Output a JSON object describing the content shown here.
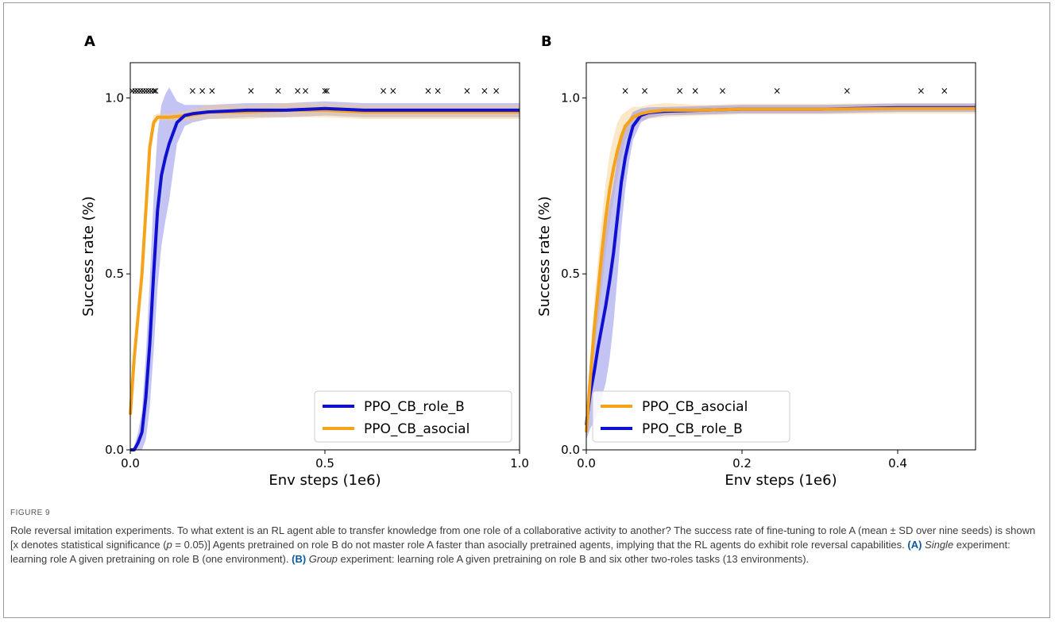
{
  "figure_label": "FIGURE 9",
  "caption_parts": [
    {
      "t": "Role reversal imitation experiments. To what extent is an RL agent able to transfer knowledge from one role of a collaborative activity to another? The success rate of fine-tuning to role A (mean ± SD over nine seeds) is shown [x denotes statistical significance ("
    },
    {
      "t": "p",
      "style": "i"
    },
    {
      "t": " = 0.05)] Agents pretrained on role B do not master role A faster than asocially pretrained agents, implying that the RL agents do exhibit role reversal capabilities. "
    },
    {
      "t": "(A)",
      "style": "b"
    },
    {
      "t": " "
    },
    {
      "t": "Single",
      "style": "i"
    },
    {
      "t": " experiment: learning role A given pretraining on role B (one environment). "
    },
    {
      "t": "(B)",
      "style": "b"
    },
    {
      "t": " "
    },
    {
      "t": "Group",
      "style": "i"
    },
    {
      "t": " experiment: learning role A given pretraining on role B and six other two-roles tasks (13 environments)."
    }
  ],
  "colors": {
    "blue": "#1010d0",
    "orange": "#f5a31a",
    "blue_band": "#7d7de6",
    "orange_band": "#f7cd85"
  },
  "chart_data": [
    {
      "panel": "A",
      "type": "line",
      "xlabel": "Env steps (1e6)",
      "ylabel": "Success rate (%)",
      "xlim": [
        0,
        1.0
      ],
      "ylim": [
        0,
        1.1
      ],
      "xticks": [
        0.0,
        0.5,
        1.0
      ],
      "xtick_labels": [
        "0.0",
        "0.5",
        "1.0"
      ],
      "yticks": [
        0.0,
        0.5,
        1.0
      ],
      "ytick_labels": [
        "0.0",
        "0.5",
        "1.0"
      ],
      "legend_position": "lower right",
      "series": [
        {
          "name": "PPO_CB_role_B",
          "color": "blue",
          "x": [
            0.0,
            0.01,
            0.02,
            0.03,
            0.04,
            0.05,
            0.06,
            0.07,
            0.08,
            0.09,
            0.1,
            0.12,
            0.14,
            0.16,
            0.2,
            0.3,
            0.4,
            0.5,
            0.6,
            0.7,
            0.8,
            0.9,
            1.0
          ],
          "y": [
            0.0,
            0.0,
            0.02,
            0.05,
            0.15,
            0.3,
            0.5,
            0.68,
            0.78,
            0.83,
            0.87,
            0.93,
            0.95,
            0.955,
            0.96,
            0.965,
            0.965,
            0.97,
            0.965,
            0.965,
            0.965,
            0.965,
            0.965
          ],
          "sd": [
            0.0,
            0.01,
            0.03,
            0.06,
            0.12,
            0.18,
            0.22,
            0.22,
            0.2,
            0.18,
            0.16,
            0.06,
            0.03,
            0.025,
            0.02,
            0.02,
            0.02,
            0.02,
            0.02,
            0.02,
            0.02,
            0.02,
            0.02
          ]
        },
        {
          "name": "PPO_CB_asocial",
          "color": "orange",
          "x": [
            0.0,
            0.01,
            0.02,
            0.03,
            0.04,
            0.05,
            0.06,
            0.07,
            0.08,
            0.1,
            0.15,
            0.2,
            0.3,
            0.4,
            0.5,
            0.6,
            0.7,
            0.8,
            0.9,
            1.0
          ],
          "y": [
            0.1,
            0.26,
            0.38,
            0.5,
            0.68,
            0.86,
            0.93,
            0.945,
            0.945,
            0.945,
            0.95,
            0.96,
            0.96,
            0.965,
            0.965,
            0.96,
            0.96,
            0.96,
            0.96,
            0.96
          ],
          "sd": [
            0.03,
            0.03,
            0.03,
            0.03,
            0.03,
            0.03,
            0.02,
            0.01,
            0.01,
            0.01,
            0.015,
            0.02,
            0.02,
            0.02,
            0.02,
            0.02,
            0.02,
            0.02,
            0.02,
            0.02
          ]
        }
      ],
      "significance_x": [
        0.005,
        0.012,
        0.019,
        0.026,
        0.033,
        0.04,
        0.047,
        0.054,
        0.061,
        0.065,
        0.16,
        0.185,
        0.21,
        0.31,
        0.38,
        0.43,
        0.45,
        0.5,
        0.505,
        0.65,
        0.675,
        0.765,
        0.79,
        0.865,
        0.91,
        0.94
      ],
      "significance_y": 1.02
    },
    {
      "panel": "B",
      "type": "line",
      "xlabel": "Env steps (1e6)",
      "ylabel": "Success rate (%)",
      "xlim": [
        0,
        0.5
      ],
      "ylim": [
        0,
        1.1
      ],
      "xticks": [
        0.0,
        0.2,
        0.4
      ],
      "xtick_labels": [
        "0.0",
        "0.2",
        "0.4"
      ],
      "yticks": [
        0.0,
        0.5,
        1.0
      ],
      "ytick_labels": [
        "0.0",
        "0.5",
        "1.0"
      ],
      "legend_position": "lower left",
      "series": [
        {
          "name": "PPO_CB_asocial",
          "color": "orange",
          "x": [
            0.0,
            0.005,
            0.01,
            0.015,
            0.02,
            0.025,
            0.03,
            0.035,
            0.04,
            0.045,
            0.05,
            0.06,
            0.07,
            0.08,
            0.1,
            0.15,
            0.2,
            0.3,
            0.4,
            0.5
          ],
          "y": [
            0.05,
            0.2,
            0.34,
            0.45,
            0.56,
            0.66,
            0.74,
            0.8,
            0.85,
            0.89,
            0.92,
            0.945,
            0.955,
            0.96,
            0.965,
            0.965,
            0.968,
            0.968,
            0.97,
            0.97
          ],
          "sd": [
            0.03,
            0.05,
            0.07,
            0.09,
            0.1,
            0.1,
            0.1,
            0.09,
            0.08,
            0.06,
            0.04,
            0.03,
            0.02,
            0.02,
            0.02,
            0.015,
            0.015,
            0.015,
            0.015,
            0.015
          ]
        },
        {
          "name": "PPO_CB_role_B",
          "color": "blue",
          "x": [
            0.0,
            0.005,
            0.01,
            0.015,
            0.02,
            0.025,
            0.03,
            0.035,
            0.04,
            0.045,
            0.05,
            0.055,
            0.06,
            0.07,
            0.08,
            0.1,
            0.15,
            0.2,
            0.3,
            0.4,
            0.5
          ],
          "y": [
            0.07,
            0.16,
            0.22,
            0.29,
            0.35,
            0.41,
            0.48,
            0.56,
            0.66,
            0.76,
            0.83,
            0.88,
            0.92,
            0.95,
            0.958,
            0.962,
            0.965,
            0.968,
            0.968,
            0.972,
            0.972
          ],
          "sd": [
            0.04,
            0.1,
            0.14,
            0.18,
            0.2,
            0.22,
            0.22,
            0.2,
            0.17,
            0.13,
            0.09,
            0.06,
            0.04,
            0.02,
            0.015,
            0.012,
            0.012,
            0.012,
            0.012,
            0.012,
            0.012
          ]
        }
      ],
      "significance_x": [
        0.05,
        0.075,
        0.12,
        0.14,
        0.175,
        0.245,
        0.335,
        0.43,
        0.46
      ],
      "significance_y": 1.02
    }
  ]
}
